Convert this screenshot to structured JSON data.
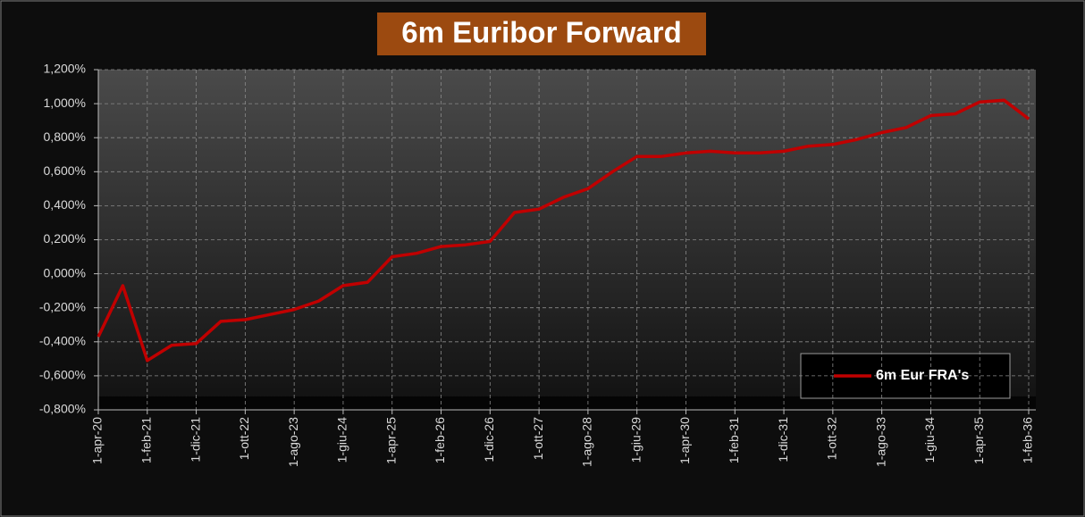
{
  "chart_data": {
    "type": "line",
    "title": "6m Euribor Forward",
    "categories": [
      "1-apr-20",
      null,
      "1-feb-21",
      null,
      "1-dic-21",
      null,
      "1-ott-22",
      null,
      "1-ago-23",
      null,
      "1-giu-24",
      null,
      "1-apr-25",
      null,
      "1-feb-26",
      null,
      "1-dic-26",
      null,
      "1-ott-27",
      null,
      "1-ago-28",
      null,
      "1-giu-29",
      null,
      "1-apr-30",
      null,
      "1-feb-31",
      null,
      "1-dic-31",
      null,
      "1-ott-32",
      null,
      "1-ago-33",
      null,
      "1-giu-34",
      null,
      "1-apr-35",
      null,
      "1-feb-36"
    ],
    "series": [
      {
        "name": "6m Eur FRA's",
        "color": "#c00000",
        "values": [
          -0.37,
          -0.07,
          -0.51,
          -0.42,
          -0.41,
          -0.28,
          -0.27,
          -0.24,
          -0.21,
          -0.16,
          -0.07,
          -0.05,
          0.1,
          0.12,
          0.16,
          0.17,
          0.19,
          0.36,
          0.38,
          0.45,
          0.5,
          0.6,
          0.69,
          0.69,
          0.71,
          0.72,
          0.71,
          0.71,
          0.72,
          0.75,
          0.76,
          0.79,
          0.83,
          0.86,
          0.93,
          0.94,
          1.01,
          1.02,
          0.91
        ]
      }
    ],
    "ylim": [
      -0.8,
      1.2
    ],
    "yticks": [
      {
        "value": -0.8,
        "label": "-0,800%"
      },
      {
        "value": -0.6,
        "label": "-0,600%"
      },
      {
        "value": -0.4,
        "label": "-0,400%"
      },
      {
        "value": -0.2,
        "label": "-0,200%"
      },
      {
        "value": 0,
        "label": "0,000%"
      },
      {
        "value": 0.2,
        "label": "0,200%"
      },
      {
        "value": 0.4,
        "label": "0,400%"
      },
      {
        "value": 0.6,
        "label": "0,600%"
      },
      {
        "value": 0.8,
        "label": "0,800%"
      },
      {
        "value": 1,
        "label": "1,000%"
      },
      {
        "value": 1.2,
        "label": "1,200%"
      }
    ],
    "grid": true
  }
}
